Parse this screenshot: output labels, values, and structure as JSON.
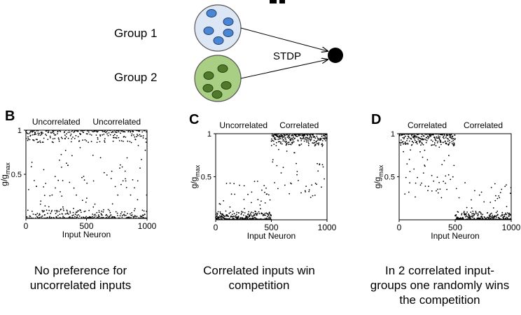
{
  "schematic": {
    "group1_label": "Group 1",
    "group2_label": "Group 2",
    "arrow_label": "STDP",
    "group1_color": "#4a86d4",
    "group1_fill": "#dce6f4",
    "group2_color": "#4f7a2a",
    "group2_fill": "#a9cf84"
  },
  "chart_data": [
    {
      "panel": "B",
      "type": "scatter",
      "section_labels": [
        "Uncorrelated",
        "Uncorrelated"
      ],
      "xlabel": "Input Neuron",
      "ylabel": "g/g",
      "ylabel_sub": "max",
      "xlim": [
        0,
        1000
      ],
      "ylim": [
        0,
        1
      ],
      "xticks": [
        "0",
        "500",
        "1000"
      ],
      "yticks": [
        "0.5",
        "1"
      ],
      "distribution": [
        {
          "x_range": [
            0,
            1000
          ],
          "near_top_fraction": 0.5,
          "top_level": 1.0,
          "bottom_level": 0.0
        }
      ]
    },
    {
      "panel": "C",
      "type": "scatter",
      "section_labels": [
        "Uncorrelated",
        "Correlated"
      ],
      "xlabel": "Input Neuron",
      "ylabel": "g/g",
      "ylabel_sub": "max",
      "xlim": [
        0,
        1000
      ],
      "ylim": [
        0,
        1
      ],
      "xticks": [
        "0",
        "500",
        "1000"
      ],
      "yticks": [
        "0.5",
        "1"
      ],
      "distribution": [
        {
          "x_range": [
            0,
            500
          ],
          "near_top_fraction": 0.0,
          "top_level": 1.0,
          "bottom_level": 0.0
        },
        {
          "x_range": [
            500,
            1000
          ],
          "near_top_fraction": 1.0,
          "top_level": 1.0,
          "bottom_level": 0.0
        }
      ]
    },
    {
      "panel": "D",
      "type": "scatter",
      "section_labels": [
        "Correlated",
        "Correlated"
      ],
      "xlabel": "Input Neuron",
      "ylabel": "g/g",
      "ylabel_sub": "max",
      "xlim": [
        0,
        1000
      ],
      "ylim": [
        0,
        1
      ],
      "xticks": [
        "0",
        "500",
        "1000"
      ],
      "yticks": [
        "0.5",
        "1"
      ],
      "distribution": [
        {
          "x_range": [
            0,
            500
          ],
          "near_top_fraction": 1.0,
          "top_level": 1.0,
          "bottom_level": 0.0
        },
        {
          "x_range": [
            500,
            1000
          ],
          "near_top_fraction": 0.0,
          "top_level": 1.0,
          "bottom_level": 0.0
        }
      ]
    }
  ],
  "captions": {
    "b": [
      "No preference for",
      "uncorrelated inputs"
    ],
    "c": [
      "Correlated inputs win",
      "competition"
    ],
    "d": [
      "In 2 correlated input-",
      "groups one randomly wins",
      "the competition"
    ]
  }
}
